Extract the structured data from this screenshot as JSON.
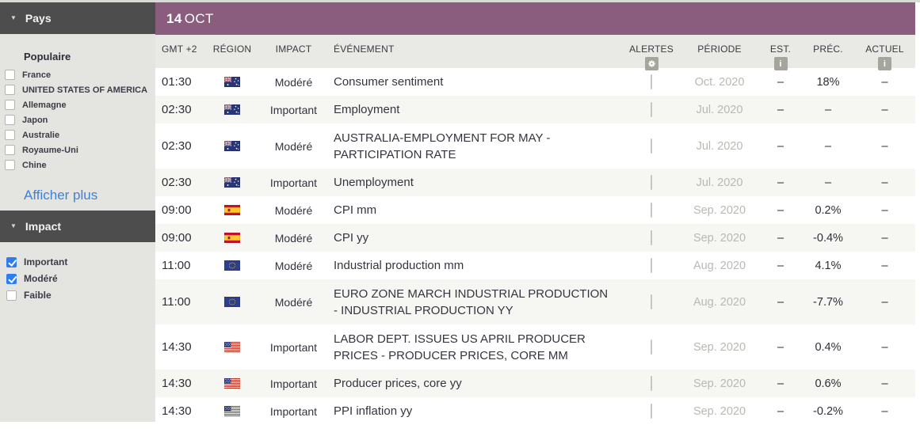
{
  "sidebar": {
    "pays_header": "Pays",
    "populaire_label": "Populaire",
    "countries": [
      {
        "label": "France",
        "checked": false
      },
      {
        "label": "UNITED STATES OF AMERICA",
        "checked": false
      },
      {
        "label": "Allemagne",
        "checked": false
      },
      {
        "label": "Japon",
        "checked": false
      },
      {
        "label": "Australie",
        "checked": false
      },
      {
        "label": "Royaume-Uni",
        "checked": false
      },
      {
        "label": "Chine",
        "checked": false
      }
    ],
    "show_more_label": "Afficher plus",
    "impact_header": "Impact",
    "impact_options": [
      {
        "label": "Important",
        "checked": true
      },
      {
        "label": "Modéré",
        "checked": true
      },
      {
        "label": "Faible",
        "checked": false
      }
    ]
  },
  "main": {
    "date_day": "14",
    "date_month": "OCT",
    "columns": {
      "time": "GMT +2",
      "region": "RÉGION",
      "impact": "IMPACT",
      "event": "ÉVÉNEMENT",
      "alerts": "ALERTES",
      "period": "PÉRIODE",
      "est": "EST.",
      "prev": "PRÉC.",
      "actual": "ACTUEL"
    },
    "header_icons": {
      "alerts": "gear-icon",
      "est": "info-icon",
      "actual": "info-icon"
    },
    "rows": [
      {
        "time": "01:30",
        "region": "au",
        "impact": "Modéré",
        "event": "Consumer sentiment",
        "period": "Oct. 2020",
        "est": "–",
        "prev": "18%",
        "actual": "–"
      },
      {
        "time": "02:30",
        "region": "au",
        "impact": "Important",
        "event": "Employment",
        "period": "Jul. 2020",
        "est": "–",
        "prev": "–",
        "actual": "–"
      },
      {
        "time": "02:30",
        "region": "au",
        "impact": "Modéré",
        "event": "AUSTRALIA-EMPLOYMENT FOR MAY - PARTICIPATION RATE",
        "period": "Jul. 2020",
        "est": "–",
        "prev": "–",
        "actual": "–",
        "tall": true
      },
      {
        "time": "02:30",
        "region": "au",
        "impact": "Important",
        "event": "Unemployment",
        "period": "Jul. 2020",
        "est": "–",
        "prev": "–",
        "actual": "–"
      },
      {
        "time": "09:00",
        "region": "es",
        "impact": "Modéré",
        "event": "CPI mm",
        "period": "Sep. 2020",
        "est": "–",
        "prev": "0.2%",
        "actual": "–"
      },
      {
        "time": "09:00",
        "region": "es",
        "impact": "Modéré",
        "event": "CPI yy",
        "period": "Sep. 2020",
        "est": "–",
        "prev": "-0.4%",
        "actual": "–"
      },
      {
        "time": "11:00",
        "region": "eu",
        "impact": "Modéré",
        "event": "Industrial production mm",
        "period": "Aug. 2020",
        "est": "–",
        "prev": "4.1%",
        "actual": "–"
      },
      {
        "time": "11:00",
        "region": "eu",
        "impact": "Modéré",
        "event": "EURO ZONE MARCH INDUSTRIAL PRODUCTION - INDUSTRIAL PRODUCTION YY",
        "period": "Aug. 2020",
        "est": "–",
        "prev": "-7.7%",
        "actual": "–",
        "tall": true
      },
      {
        "time": "14:30",
        "region": "us",
        "impact": "Important",
        "event": "LABOR DEPT. ISSUES US APRIL PRODUCER PRICES - PRODUCER PRICES, CORE MM",
        "period": "Sep. 2020",
        "est": "–",
        "prev": "0.4%",
        "actual": "–",
        "tall": true
      },
      {
        "time": "14:30",
        "region": "us",
        "impact": "Important",
        "event": "Producer prices, core yy",
        "period": "Sep. 2020",
        "est": "–",
        "prev": "0.6%",
        "actual": "–"
      },
      {
        "time": "14:30",
        "region": "us",
        "impact": "Important",
        "event": "PPI inflation yy",
        "period": "Sep. 2020",
        "est": "–",
        "prev": "-0.2%",
        "actual": "–"
      }
    ],
    "region_flags": {
      "au": "australia-flag-icon",
      "es": "spain-flag-icon",
      "eu": "european-union-flag-icon",
      "us": "united-states-flag-icon"
    }
  },
  "colors": {
    "accent_purple": "#8a5c7d",
    "section_header_dark": "#4d4d4d",
    "checkbox_blue": "#2b7df0",
    "link_blue": "#3d82d8",
    "muted_text": "#b9b9b3"
  }
}
